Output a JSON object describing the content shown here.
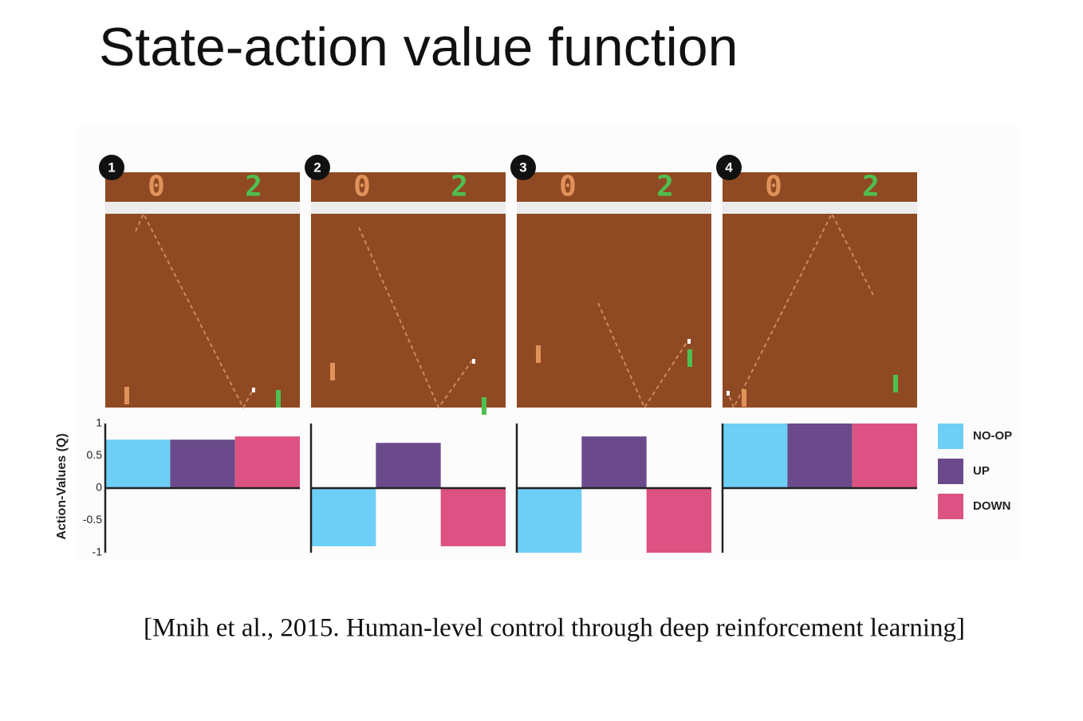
{
  "slide_title": "State-action value function",
  "citation": "[Mnih et al., 2015. Human-level control through deep reinforcement learning]",
  "game_frames": [
    {
      "scores": [
        "0",
        "2"
      ]
    },
    {
      "scores": [
        "0",
        "2"
      ]
    },
    {
      "scores": [
        "0",
        "2"
      ]
    },
    {
      "scores": [
        "0",
        "2"
      ]
    }
  ],
  "chart_data": {
    "type": "bar",
    "ylabel": "Action-Values (Q)",
    "categories": [
      "1",
      "2",
      "3",
      "4"
    ],
    "series": [
      {
        "name": "NO-OP",
        "color": "#6dcff6",
        "values": [
          0.75,
          -0.9,
          -1,
          1
        ]
      },
      {
        "name": "UP",
        "color": "#6a4a8a",
        "values": [
          0.75,
          0.7,
          0.8,
          1
        ]
      },
      {
        "name": "DOWN",
        "color": "#dc5282",
        "values": [
          0.8,
          -0.9,
          -1,
          1
        ]
      }
    ],
    "ylim": [
      -1,
      1
    ],
    "yticks": [
      1,
      0.5,
      0,
      -0.5,
      -1
    ]
  }
}
